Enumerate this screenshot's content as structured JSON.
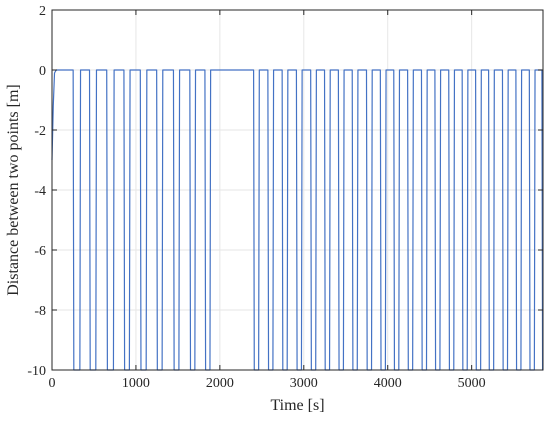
{
  "chart_data": {
    "type": "line",
    "xlabel": "Time [s]",
    "ylabel": "Distance between two points [m]",
    "xlim": [
      0,
      5850
    ],
    "ylim": [
      -10,
      2
    ],
    "xticks": [
      0,
      1000,
      2000,
      3000,
      4000,
      5000
    ],
    "yticks": [
      2,
      0,
      -2,
      -4,
      -6,
      -8,
      -10
    ],
    "grid": true,
    "series_color": "#4472c4",
    "grid_color": "#e6e6e6",
    "series": [
      {
        "baseline": 0,
        "floor": -10,
        "initial_transient": {
          "x": [
            0,
            15,
            30,
            50
          ],
          "y": [
            -3.0,
            -1.2,
            -0.1,
            0
          ]
        },
        "drop_times": [
          260,
          455,
          660,
          865,
          1060,
          1255,
          1455,
          1650,
          1830,
          2410,
          2580,
          2750,
          2920,
          3090,
          3255,
          3420,
          3585,
          3755,
          3920,
          4080,
          4245,
          4410,
          4570,
          4735,
          4895,
          5055,
          5210,
          5375,
          5535,
          5695,
          5845
        ],
        "recovery_times": [
          340,
          530,
          740,
          930,
          1130,
          1320,
          1520,
          1710,
          1890,
          2470,
          2640,
          2810,
          2980,
          3150,
          3315,
          3480,
          3645,
          3815,
          3980,
          4140,
          4305,
          4470,
          4630,
          4795,
          4955,
          5115,
          5270,
          5435,
          5595,
          5755
        ]
      }
    ]
  }
}
